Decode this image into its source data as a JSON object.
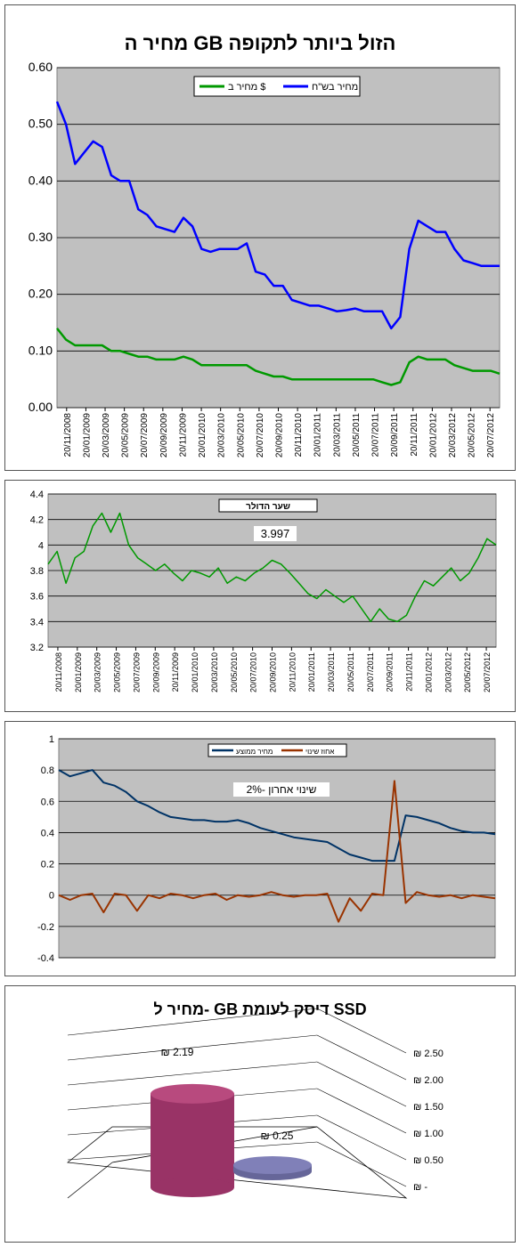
{
  "chart_data": [
    {
      "type": "line",
      "title": "מחיר ה GB הזול ביותר לתקופה",
      "ylim": [
        0,
        0.6
      ],
      "y_ticks": [
        "0.00",
        "0.10",
        "0.20",
        "0.30",
        "0.40",
        "0.50",
        "0.60"
      ],
      "x_ticks": [
        "20/11/2008",
        "20/01/2009",
        "20/03/2009",
        "20/05/2009",
        "20/07/2009",
        "20/09/2009",
        "20/11/2009",
        "20/01/2010",
        "20/03/2010",
        "20/05/2010",
        "20/07/2010",
        "20/09/2010",
        "20/11/2010",
        "20/01/2011",
        "20/03/2011",
        "20/05/2011",
        "20/07/2011",
        "20/09/2011",
        "20/11/2011",
        "20/01/2012",
        "20/03/2012",
        "20/05/2012",
        "20/07/2012"
      ],
      "legend": "top",
      "grid": true,
      "series": [
        {
          "name": "מחיר בש\"ח",
          "color": "#0000ff",
          "values": [
            0.54,
            0.5,
            0.43,
            0.45,
            0.47,
            0.46,
            0.41,
            0.4,
            0.4,
            0.35,
            0.34,
            0.32,
            0.315,
            0.31,
            0.335,
            0.32,
            0.28,
            0.275,
            0.28,
            0.28,
            0.28,
            0.29,
            0.24,
            0.235,
            0.215,
            0.215,
            0.19,
            0.185,
            0.18,
            0.18,
            0.175,
            0.17,
            0.172,
            0.175,
            0.17,
            0.17,
            0.17,
            0.14,
            0.16,
            0.28,
            0.33,
            0.32,
            0.31,
            0.31,
            0.28,
            0.26,
            0.255,
            0.25,
            0.25,
            0.25
          ]
        },
        {
          "name": "מחיר ב $",
          "color": "#009900",
          "values": [
            0.14,
            0.12,
            0.11,
            0.11,
            0.11,
            0.11,
            0.1,
            0.1,
            0.095,
            0.09,
            0.09,
            0.085,
            0.085,
            0.085,
            0.09,
            0.085,
            0.075,
            0.075,
            0.075,
            0.075,
            0.075,
            0.075,
            0.065,
            0.06,
            0.055,
            0.055,
            0.05,
            0.05,
            0.05,
            0.05,
            0.05,
            0.05,
            0.05,
            0.05,
            0.05,
            0.05,
            0.045,
            0.04,
            0.045,
            0.08,
            0.09,
            0.085,
            0.085,
            0.085,
            0.075,
            0.07,
            0.065,
            0.065,
            0.065,
            0.06
          ]
        }
      ]
    },
    {
      "type": "line",
      "title": "שער הדולר",
      "annotation": "3.997",
      "ylim": [
        3.2,
        4.4
      ],
      "y_ticks": [
        "3.2",
        "3.4",
        "3.6",
        "3.8",
        "4",
        "4.2",
        "4.4"
      ],
      "x_ticks": [
        "20/11/2008",
        "20/01/2009",
        "20/03/2009",
        "20/05/2009",
        "20/07/2009",
        "20/09/2009",
        "20/11/2009",
        "20/01/2010",
        "20/03/2010",
        "20/05/2010",
        "20/07/2010",
        "20/09/2010",
        "20/11/2010",
        "20/01/2011",
        "20/03/2011",
        "20/05/2011",
        "20/07/2011",
        "20/09/2011",
        "20/11/2011",
        "20/01/2012",
        "20/03/2012",
        "20/05/2012",
        "20/07/2012"
      ],
      "grid": true,
      "series": [
        {
          "name": "",
          "color": "#009900",
          "values": [
            3.85,
            3.95,
            3.7,
            3.9,
            3.95,
            4.15,
            4.25,
            4.1,
            4.25,
            4.0,
            3.9,
            3.85,
            3.8,
            3.85,
            3.78,
            3.72,
            3.8,
            3.78,
            3.75,
            3.82,
            3.7,
            3.75,
            3.72,
            3.78,
            3.82,
            3.88,
            3.85,
            3.78,
            3.7,
            3.62,
            3.58,
            3.65,
            3.6,
            3.55,
            3.6,
            3.5,
            3.4,
            3.5,
            3.42,
            3.4,
            3.45,
            3.6,
            3.72,
            3.68,
            3.75,
            3.82,
            3.72,
            3.78,
            3.9,
            4.05,
            4.0
          ]
        }
      ]
    },
    {
      "type": "line",
      "annotation": "שינוי אחרון  -2%",
      "ylim": [
        -0.4,
        1
      ],
      "y_ticks": [
        "-0.4",
        "-0.2",
        "0",
        "0.2",
        "0.4",
        "0.6",
        "0.8",
        "1"
      ],
      "grid": true,
      "legend": "top",
      "series": [
        {
          "name": "מחיר ממוצע",
          "color": "#003366",
          "values": [
            0.8,
            0.76,
            0.78,
            0.8,
            0.72,
            0.7,
            0.66,
            0.6,
            0.57,
            0.53,
            0.5,
            0.49,
            0.48,
            0.48,
            0.47,
            0.47,
            0.48,
            0.46,
            0.43,
            0.41,
            0.39,
            0.37,
            0.36,
            0.35,
            0.34,
            0.3,
            0.26,
            0.24,
            0.22,
            0.22,
            0.22,
            0.51,
            0.5,
            0.48,
            0.46,
            0.43,
            0.41,
            0.4,
            0.4,
            0.39
          ]
        },
        {
          "name": "אחוז שינוי",
          "color": "#993300",
          "values": [
            0,
            -0.03,
            0,
            0.01,
            -0.11,
            0.01,
            0,
            -0.1,
            0,
            -0.02,
            0.01,
            0,
            -0.02,
            0,
            0.01,
            -0.03,
            0,
            -0.01,
            0,
            0.02,
            0,
            -0.01,
            0,
            0,
            0.01,
            -0.17,
            -0.02,
            -0.1,
            0.01,
            0,
            0.73,
            -0.05,
            0.02,
            0,
            -0.01,
            0,
            -0.02,
            0,
            -0.01,
            -0.02
          ]
        }
      ]
    },
    {
      "type": "bar",
      "title": "מחיר ל- GB דיסק לעומת SSD",
      "values": [
        2.19,
        0.25
      ],
      "value_labels": [
        "₪ 2.19",
        "₪ 0.25"
      ],
      "colors": [
        "#993366",
        "#666699"
      ],
      "y_ticks": [
        "₪ -",
        "₪ 0.50",
        "₪ 1.00",
        "₪ 1.50",
        "₪ 2.00",
        "₪ 2.50"
      ],
      "ylim": [
        0,
        2.5
      ]
    }
  ]
}
